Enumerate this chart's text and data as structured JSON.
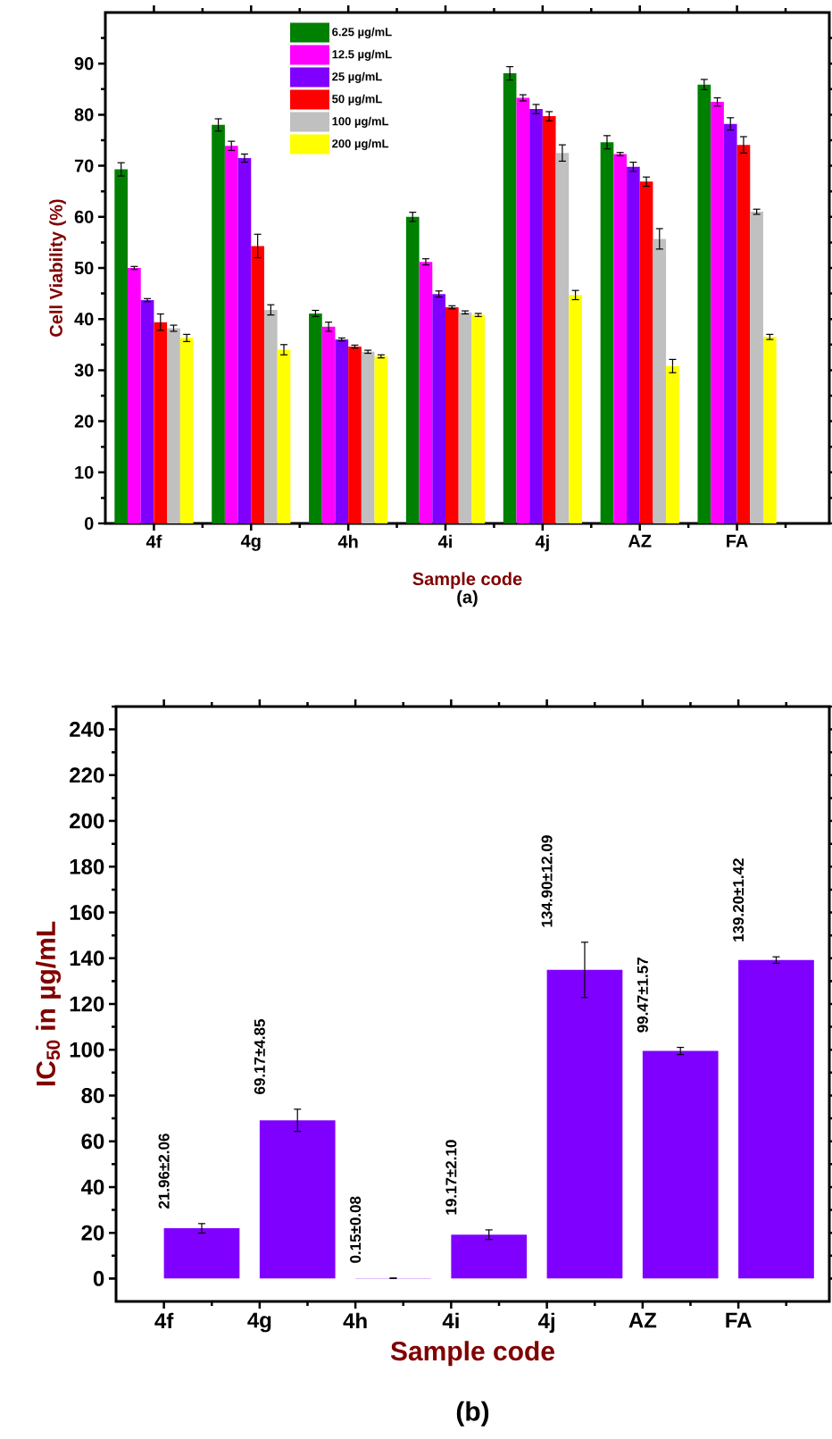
{
  "chart_data": [
    {
      "type": "bar",
      "title": "(a)",
      "xlabel": "Sample code",
      "ylabel": "Cell Viability (%)",
      "categories": [
        "4f",
        "4g",
        "4h",
        "4i",
        "4j",
        "AZ",
        "FA"
      ],
      "ylim": [
        0,
        100
      ],
      "yticks": [
        0,
        10,
        20,
        30,
        40,
        50,
        60,
        70,
        80,
        90
      ],
      "legend": "top",
      "grid": false,
      "series": [
        {
          "name": "6.25 µg/mL",
          "color": "#008000",
          "values": [
            69.3,
            78.0,
            41.1,
            60.0,
            88.1,
            74.6,
            85.9
          ],
          "errors": [
            1.3,
            1.2,
            0.6,
            0.9,
            1.3,
            1.3,
            1.0
          ]
        },
        {
          "name": "12.5 µg/mL",
          "color": "#ff00ff",
          "values": [
            50.0,
            73.9,
            38.5,
            51.2,
            83.3,
            72.3,
            82.5
          ],
          "errors": [
            0.3,
            0.9,
            0.9,
            0.6,
            0.6,
            0.3,
            0.8
          ]
        },
        {
          "name": "25 µg/mL",
          "color": "#8000ff",
          "values": [
            43.7,
            71.5,
            36.0,
            44.9,
            81.1,
            69.8,
            78.2
          ],
          "errors": [
            0.3,
            0.8,
            0.3,
            0.6,
            0.9,
            0.9,
            1.2
          ]
        },
        {
          "name": "50 µg/mL",
          "color": "#ff0000",
          "values": [
            39.4,
            54.3,
            34.6,
            42.3,
            79.7,
            66.9,
            74.1
          ],
          "errors": [
            1.6,
            2.3,
            0.3,
            0.3,
            0.9,
            0.9,
            1.6
          ]
        },
        {
          "name": "100 µg/mL",
          "color": "#c0c0c0",
          "values": [
            38.2,
            41.8,
            33.6,
            41.3,
            72.5,
            55.7,
            61.0
          ],
          "errors": [
            0.6,
            1.0,
            0.3,
            0.3,
            1.6,
            2.0,
            0.5
          ]
        },
        {
          "name": "200 µg/mL",
          "color": "#ffff00",
          "values": [
            36.3,
            34.0,
            32.7,
            40.8,
            44.7,
            30.8,
            36.5
          ],
          "errors": [
            0.7,
            1.0,
            0.3,
            0.3,
            0.9,
            1.3,
            0.5
          ]
        }
      ]
    },
    {
      "type": "bar",
      "title": "(b)",
      "xlabel": "Sample code",
      "ylabel": "IC$_{50}$ in µg/mL",
      "categories": [
        "4f",
        "4g",
        "4h",
        "4i",
        "4j",
        "AZ",
        "FA"
      ],
      "ylim": [
        -10,
        250
      ],
      "yticks": [
        0,
        20,
        40,
        60,
        80,
        100,
        120,
        140,
        160,
        180,
        200,
        220,
        240
      ],
      "legend": false,
      "grid": false,
      "color": "#7f00ff",
      "values": [
        21.96,
        69.17,
        0.15,
        19.17,
        134.9,
        99.47,
        139.2
      ],
      "errors": [
        2.06,
        4.85,
        0.08,
        2.1,
        12.09,
        1.57,
        1.42
      ],
      "value_labels": [
        "21.96±2.06",
        "69.17±4.85",
        "0.15±0.08",
        "19.17±2.10",
        "134.90±12.09",
        "99.47±1.57",
        "139.20±1.42"
      ]
    }
  ]
}
